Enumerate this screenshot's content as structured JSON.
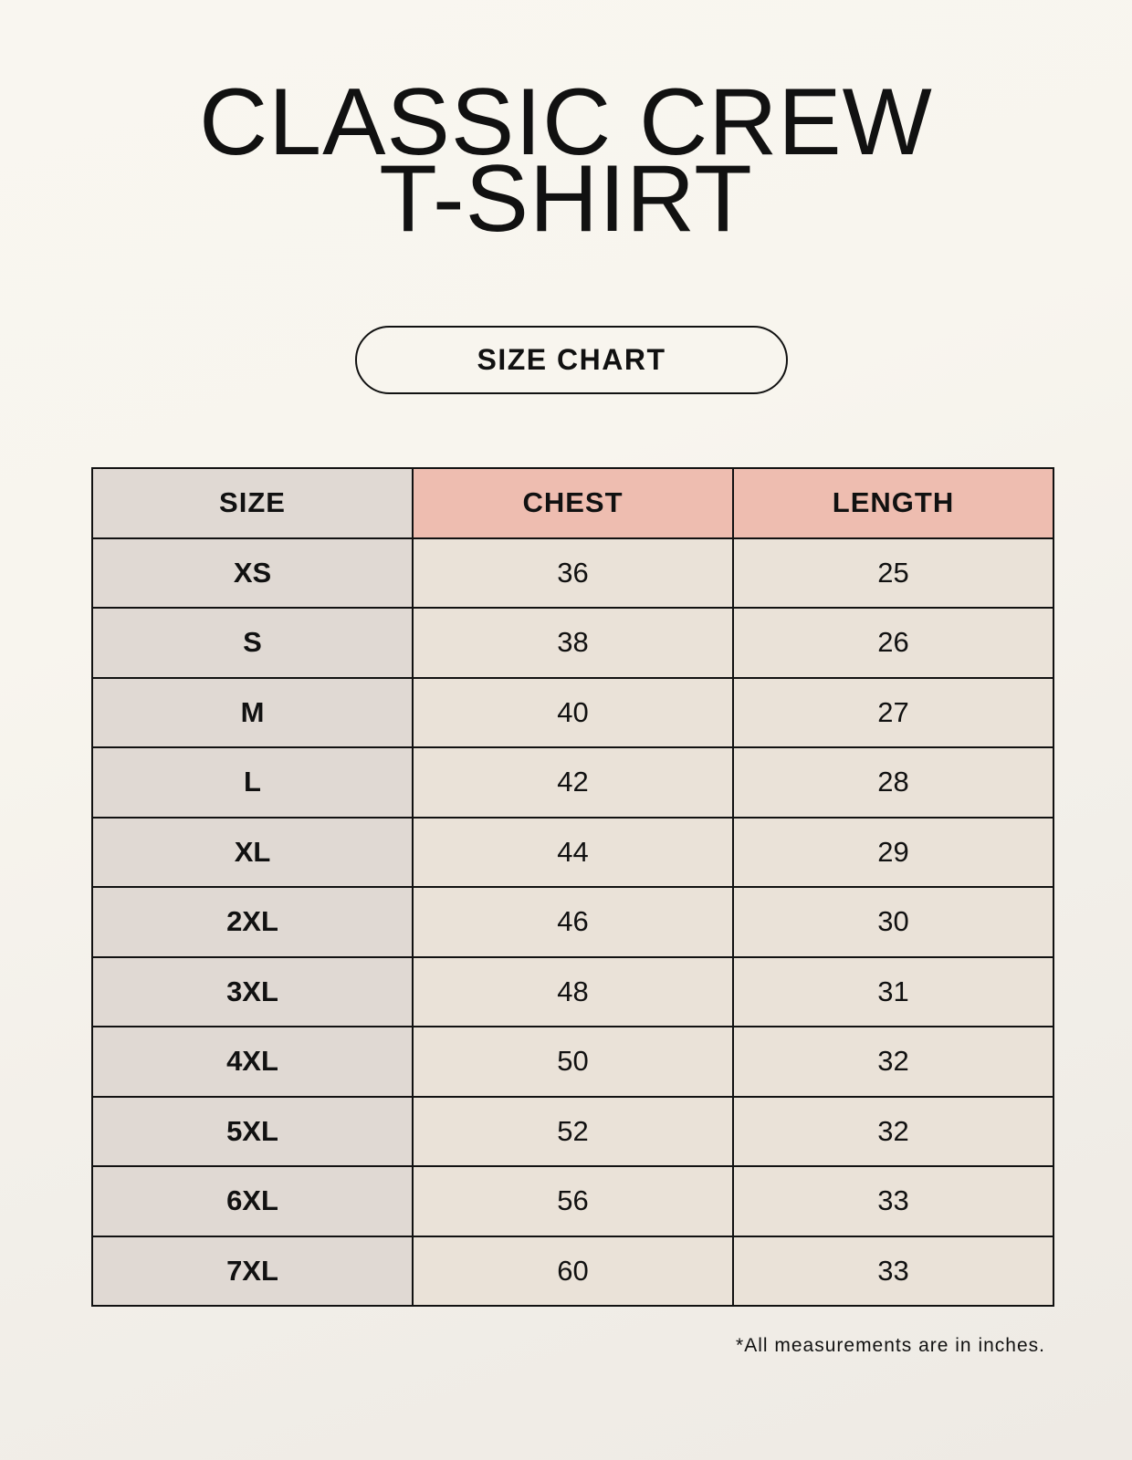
{
  "title": {
    "line1": "CLASSIC CREW",
    "line2": "T-SHIRT"
  },
  "badge": "SIZE CHART",
  "table": {
    "headers": [
      "SIZE",
      "CHEST",
      "LENGTH"
    ],
    "rows": [
      [
        "XS",
        "36",
        "25"
      ],
      [
        "S",
        "38",
        "26"
      ],
      [
        "M",
        "40",
        "27"
      ],
      [
        "L",
        "42",
        "28"
      ],
      [
        "XL",
        "44",
        "29"
      ],
      [
        "2XL",
        "46",
        "30"
      ],
      [
        "3XL",
        "48",
        "31"
      ],
      [
        "4XL",
        "50",
        "32"
      ],
      [
        "5XL",
        "52",
        "32"
      ],
      [
        "6XL",
        "56",
        "33"
      ],
      [
        "7XL",
        "60",
        "33"
      ]
    ]
  },
  "footnote": "*All measurements are in inches.",
  "colors": {
    "header_accent": "#eebdb0",
    "size_column": "#e0d9d3",
    "value_cells": "#eae2d8"
  }
}
